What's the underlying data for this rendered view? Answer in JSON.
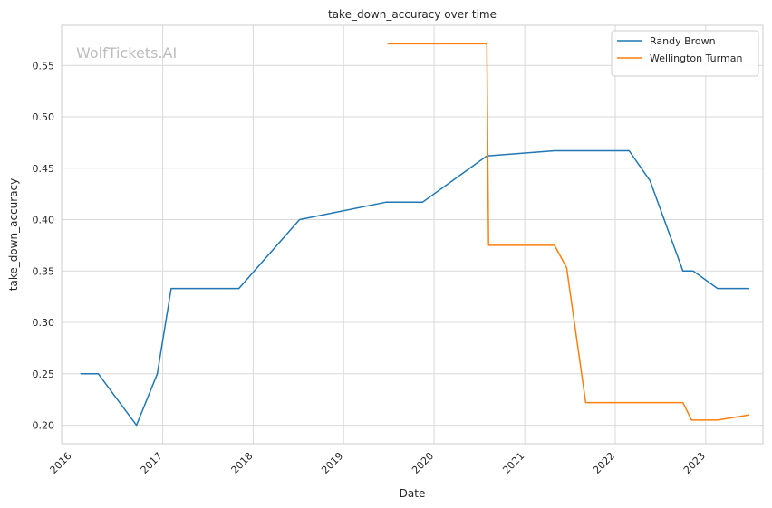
{
  "watermark": "WolfTickets.AI",
  "chart_data": {
    "type": "line",
    "title": "take_down_accuracy over time",
    "xlabel": "Date",
    "ylabel": "take_down_accuracy",
    "xlim": [
      "2015-11-20",
      "2023-08-20"
    ],
    "ylim": [
      0.182,
      0.589
    ],
    "x_ticks": [
      "2016",
      "2017",
      "2018",
      "2019",
      "2020",
      "2021",
      "2022",
      "2023"
    ],
    "y_ticks": [
      "0.20",
      "0.25",
      "0.30",
      "0.35",
      "0.40",
      "0.45",
      "0.50",
      "0.55"
    ],
    "grid": true,
    "legend_position": "top-right",
    "series": [
      {
        "name": "Randy Brown",
        "color": "#1f77b4",
        "points": [
          [
            "2016-02-06",
            0.25
          ],
          [
            "2016-04-16",
            0.25
          ],
          [
            "2016-09-17",
            0.2
          ],
          [
            "2016-12-10",
            0.25
          ],
          [
            "2017-02-04",
            0.333
          ],
          [
            "2017-11-04",
            0.333
          ],
          [
            "2018-07-07",
            0.4
          ],
          [
            "2019-06-22",
            0.417
          ],
          [
            "2019-11-16",
            0.417
          ],
          [
            "2020-08-01",
            0.462
          ],
          [
            "2021-05-01",
            0.467
          ],
          [
            "2022-02-26",
            0.467
          ],
          [
            "2022-05-21",
            0.438
          ],
          [
            "2022-10-01",
            0.35
          ],
          [
            "2022-11-12",
            0.35
          ],
          [
            "2023-02-18",
            0.333
          ],
          [
            "2023-06-24",
            0.333
          ]
        ]
      },
      {
        "name": "Wellington Turman",
        "color": "#ff7f0e",
        "points": [
          [
            "2019-06-29",
            0.571
          ],
          [
            "2020-08-01",
            0.571
          ],
          [
            "2020-08-08",
            0.375
          ],
          [
            "2021-05-01",
            0.375
          ],
          [
            "2021-06-19",
            0.353
          ],
          [
            "2021-09-04",
            0.222
          ],
          [
            "2022-10-01",
            0.222
          ],
          [
            "2022-11-05",
            0.205
          ],
          [
            "2023-02-18",
            0.205
          ],
          [
            "2023-06-24",
            0.21
          ]
        ]
      }
    ]
  }
}
